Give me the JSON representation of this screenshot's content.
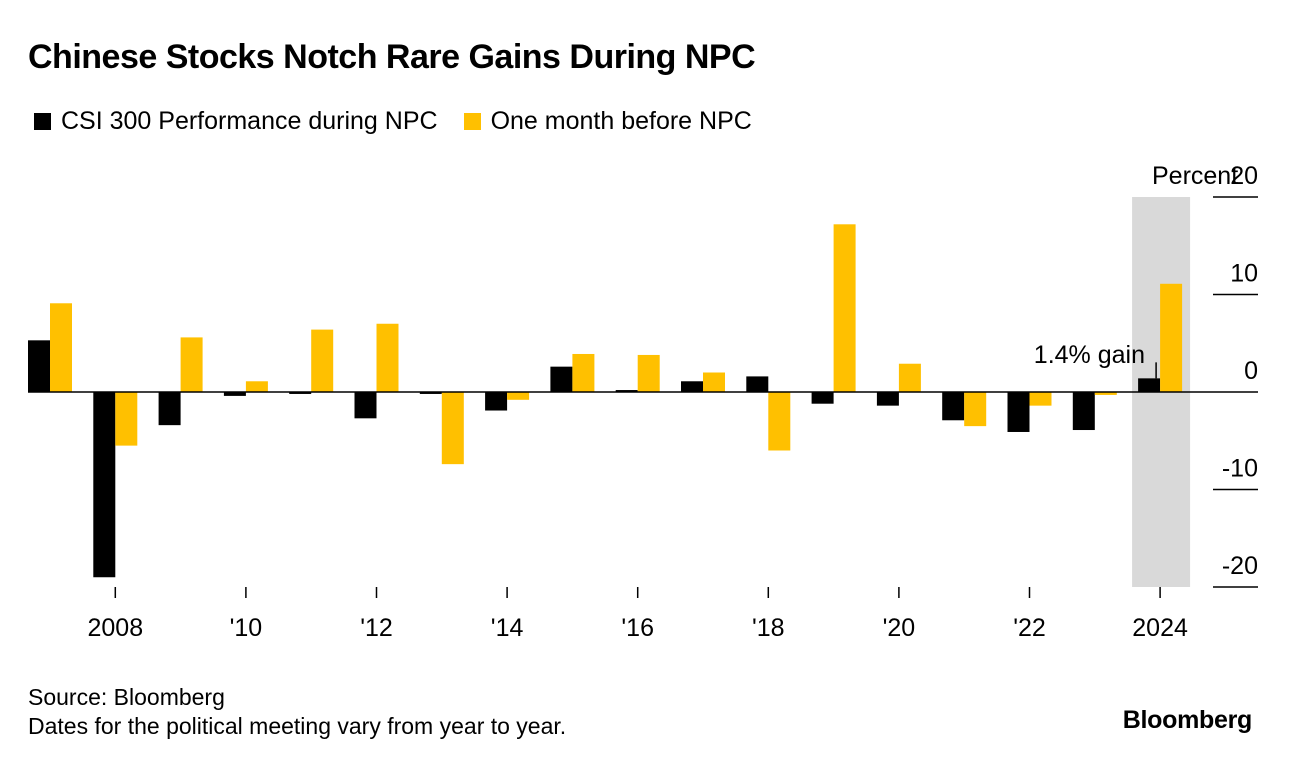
{
  "colors": {
    "series_during": "#000000",
    "series_before": "#FFC000",
    "highlight": "#D9D9D9",
    "axis": "#000000"
  },
  "brand": "Bloomberg",
  "footer": {
    "source": "Source: Bloomberg",
    "note": "Dates for the political meeting vary from year to year."
  },
  "chart_data": {
    "type": "bar",
    "title": "Chinese Stocks Notch Rare Gains During NPC",
    "ylabel": "Percent",
    "ylim": [
      -20,
      20
    ],
    "yticks": [
      20,
      10,
      0,
      -10,
      -20
    ],
    "years": [
      2007,
      2008,
      2009,
      2010,
      2011,
      2012,
      2013,
      2014,
      2015,
      2016,
      2017,
      2018,
      2019,
      2020,
      2021,
      2022,
      2023,
      2024
    ],
    "xtick_labels": [
      {
        "year": 2008,
        "label": "2008"
      },
      {
        "year": 2010,
        "label": "'10"
      },
      {
        "year": 2012,
        "label": "'12"
      },
      {
        "year": 2014,
        "label": "'14"
      },
      {
        "year": 2016,
        "label": "'16"
      },
      {
        "year": 2018,
        "label": "'18"
      },
      {
        "year": 2020,
        "label": "'20"
      },
      {
        "year": 2022,
        "label": "'22"
      },
      {
        "year": 2024,
        "label": "2024"
      }
    ],
    "series": [
      {
        "name": "CSI 300 Performance during NPC",
        "color": "#000000",
        "values": [
          5.3,
          -19.0,
          -3.4,
          -0.4,
          -0.2,
          -2.7,
          -0.2,
          -1.9,
          2.6,
          0.2,
          1.1,
          1.6,
          -1.2,
          -1.4,
          -2.9,
          -4.1,
          -3.9,
          1.4
        ]
      },
      {
        "name": "One month before NPC",
        "color": "#FFC000",
        "values": [
          9.1,
          -5.5,
          5.6,
          1.1,
          6.4,
          7.0,
          -7.4,
          -0.8,
          3.9,
          3.8,
          2.0,
          -6.0,
          17.2,
          2.9,
          -3.5,
          -1.4,
          -0.3,
          11.1
        ]
      }
    ],
    "highlight_year": 2024,
    "annotation": {
      "text": "1.4% gain",
      "year": 2024,
      "value": 1.4
    }
  }
}
